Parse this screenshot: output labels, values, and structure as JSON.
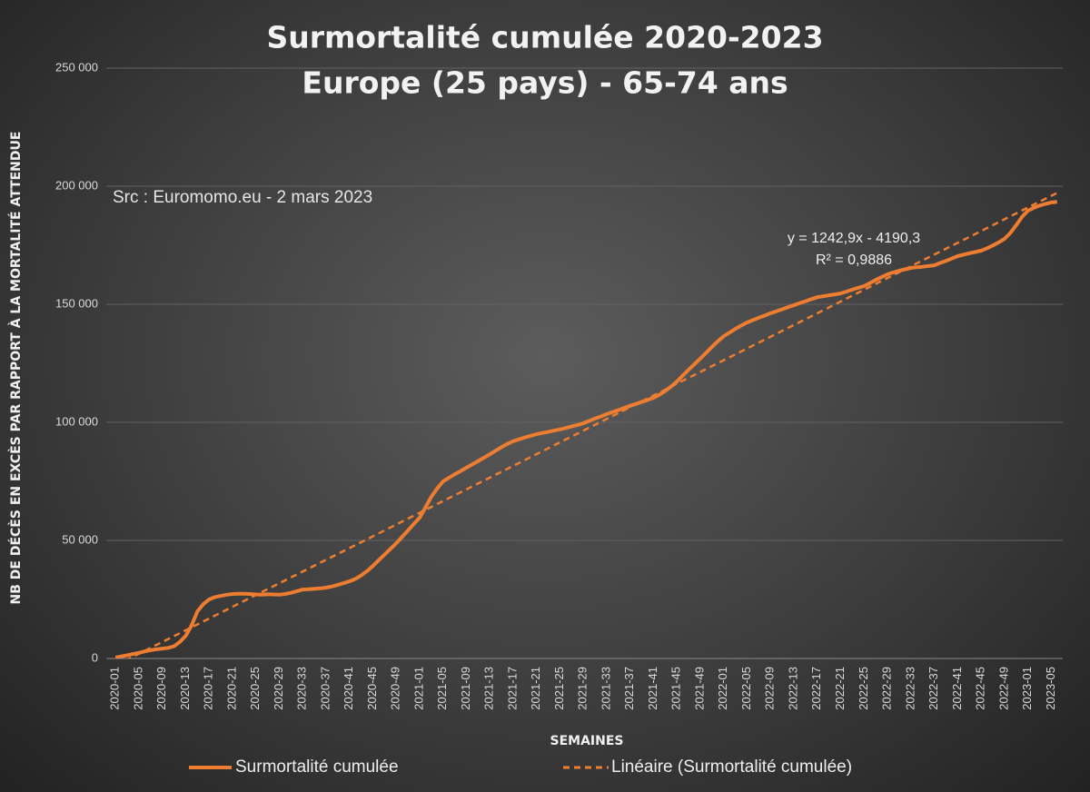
{
  "chart_data": {
    "type": "line",
    "title": [
      "Surmortalité cumulée 2020-2023",
      "Europe (25 pays) - 65-74 ans"
    ],
    "annotation": "Src : Euromomo.eu  - 2 mars 2023",
    "x_label": "SEMAINES",
    "y_label": "NB DE DÉCÈS EN EXCÈS PAR RAPPORT À LA MORTALITÉ ATTENDUE",
    "categories": [
      "2020-01",
      null,
      null,
      null,
      "2020-05",
      null,
      null,
      null,
      "2020-09",
      null,
      null,
      null,
      "2020-13",
      null,
      null,
      null,
      "2020-17",
      null,
      null,
      null,
      "2020-21",
      null,
      null,
      null,
      "2020-25",
      null,
      null,
      null,
      "2020-29",
      null,
      null,
      null,
      "2020-33",
      null,
      null,
      null,
      "2020-37",
      null,
      null,
      null,
      "2020-41",
      null,
      null,
      null,
      "2020-45",
      null,
      null,
      null,
      "2020-49",
      null,
      null,
      null,
      "2021-01",
      null,
      null,
      null,
      "2021-05",
      null,
      null,
      null,
      "2021-09",
      null,
      null,
      null,
      "2021-13",
      null,
      null,
      null,
      "2021-17",
      null,
      null,
      null,
      "2021-21",
      null,
      null,
      null,
      "2021-25",
      null,
      null,
      null,
      "2021-29",
      null,
      null,
      null,
      "2021-33",
      null,
      null,
      null,
      "2021-37",
      null,
      null,
      null,
      "2021-41",
      null,
      null,
      null,
      "2021-45",
      null,
      null,
      null,
      "2021-49",
      null,
      null,
      null,
      "2022-01",
      null,
      null,
      null,
      "2022-05",
      null,
      null,
      null,
      "2022-09",
      null,
      null,
      null,
      "2022-13",
      null,
      null,
      null,
      "2022-17",
      null,
      null,
      null,
      "2022-21",
      null,
      null,
      null,
      "2022-25",
      null,
      null,
      null,
      "2022-29",
      null,
      null,
      null,
      "2022-33",
      null,
      null,
      null,
      "2022-37",
      null,
      null,
      null,
      "2022-41",
      null,
      null,
      null,
      "2022-45",
      null,
      null,
      null,
      "2022-49",
      null,
      null,
      null,
      "2023-01",
      null,
      null,
      null,
      "2023-05",
      null
    ],
    "series": [
      {
        "name": "Surmortalité cumulée",
        "color": "#ed7d31",
        "values": [
          400,
          900,
          1400,
          1900,
          2400,
          3000,
          3500,
          3900,
          4200,
          4500,
          5200,
          7000,
          9600,
          14000,
          20000,
          23000,
          25000,
          26000,
          26500,
          27000,
          27300,
          27400,
          27400,
          27300,
          27100,
          27000,
          27200,
          27100,
          27000,
          27300,
          27800,
          28500,
          29200,
          29300,
          29500,
          29700,
          30000,
          30500,
          31200,
          31900,
          32700,
          33700,
          35200,
          37000,
          39200,
          41600,
          44000,
          46400,
          48800,
          51500,
          54200,
          57000,
          59600,
          64000,
          68500,
          72000,
          75000,
          76500,
          78000,
          79400,
          80800,
          82200,
          83600,
          85000,
          86500,
          88000,
          89500,
          90900,
          92000,
          92800,
          93600,
          94300,
          95000,
          95500,
          96000,
          96500,
          97000,
          97600,
          98300,
          98900,
          99600,
          100600,
          101600,
          102500,
          103500,
          104400,
          105200,
          106100,
          107000,
          107800,
          108700,
          109500,
          110400,
          111700,
          113300,
          115200,
          117300,
          119800,
          122300,
          124700,
          127000,
          129500,
          132000,
          134400,
          136500,
          138000,
          139600,
          141000,
          142300,
          143300,
          144300,
          145200,
          146200,
          147000,
          147900,
          148800,
          149600,
          150500,
          151300,
          152200,
          153000,
          153400,
          153800,
          154200,
          154600,
          155400,
          156200,
          157000,
          157700,
          159000,
          160300,
          161500,
          162700,
          163500,
          164200,
          164800,
          165400,
          165700,
          165900,
          166200,
          166500,
          167500,
          168400,
          169400,
          170400,
          171000,
          171600,
          172100,
          172700,
          173700,
          174900,
          176200,
          177700,
          180200,
          183500,
          187000,
          189600,
          190800,
          191800,
          192500,
          193100,
          193400
        ]
      }
    ],
    "trendline": {
      "name": "Linéaire (Surmortalité cumulée)",
      "color": "#ed7d31",
      "equation": "y = 1242,9x - 4190,3",
      "r2": "R² = 0,9886",
      "slope": 1242.9,
      "intercept": -4190.3
    },
    "ylim": [
      0,
      250000
    ],
    "yticks": [
      0,
      {
        "value": 50000,
        "label": "50 000"
      },
      {
        "value": 100000,
        "label": "100 000"
      },
      {
        "value": 150000,
        "label": "150 000"
      },
      {
        "value": 200000,
        "label": "200 000"
      },
      {
        "value": 250000,
        "label": "250 000"
      }
    ],
    "grid": true
  }
}
